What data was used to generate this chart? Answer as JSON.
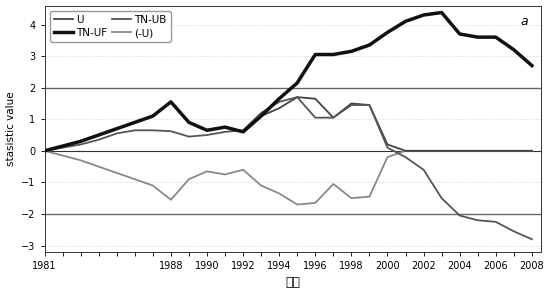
{
  "title": "a",
  "xlabel": "年份",
  "ylabel": "stasistic value",
  "ylim": [
    -3.2,
    4.6
  ],
  "yticks": [
    -3.0,
    -2.0,
    -1.0,
    0.0,
    1.0,
    2.0,
    3.0,
    4.0
  ],
  "hlines": [
    2.0,
    -2.0
  ],
  "hline_color": "#666666",
  "U_x": [
    1981,
    1982,
    1983,
    1984,
    1985,
    1986,
    1987,
    1988,
    1989,
    1990,
    1991,
    1992,
    1993,
    1994,
    1995,
    1996,
    1997,
    1998,
    1999,
    2000,
    2001,
    2002,
    2003,
    2004,
    2005,
    2006,
    2007,
    2008
  ],
  "U_y": [
    0.0,
    0.15,
    0.3,
    0.5,
    0.7,
    0.9,
    1.1,
    1.55,
    0.9,
    0.65,
    0.75,
    0.6,
    1.1,
    1.35,
    1.7,
    1.65,
    1.05,
    1.5,
    1.45,
    0.2,
    0.0,
    0.0,
    0.0,
    0.0,
    0.0,
    0.0,
    0.0,
    0.0
  ],
  "U_color": "#444444",
  "U_lw": 1.3,
  "TNUF_x": [
    1981,
    1982,
    1983,
    1984,
    1985,
    1986,
    1987,
    1988,
    1989,
    1990,
    1991,
    1992,
    1993,
    1994,
    1995,
    1996,
    1997,
    1998,
    1999,
    2000,
    2001,
    2002,
    2003,
    2004,
    2005,
    2006,
    2007,
    2008
  ],
  "TNUF_y": [
    0.0,
    0.15,
    0.3,
    0.5,
    0.7,
    0.9,
    1.1,
    1.55,
    0.9,
    0.65,
    0.75,
    0.6,
    1.1,
    1.65,
    2.15,
    3.05,
    3.05,
    3.15,
    3.35,
    3.75,
    4.1,
    4.3,
    4.38,
    3.7,
    3.6,
    3.6,
    3.2,
    2.7
  ],
  "TNUF_color": "#111111",
  "TNUF_lw": 2.5,
  "TNUB_x": [
    1981,
    1982,
    1983,
    1984,
    1985,
    1986,
    1987,
    1988,
    1989,
    1990,
    1991,
    1992,
    1993,
    1994,
    1995,
    1996,
    1997,
    1998,
    1999,
    2000,
    2001,
    2002,
    2003,
    2004,
    2005,
    2006,
    2007,
    2008
  ],
  "TNUB_y": [
    0.0,
    0.1,
    0.2,
    0.35,
    0.55,
    0.65,
    0.65,
    0.62,
    0.45,
    0.5,
    0.6,
    0.65,
    1.2,
    1.55,
    1.7,
    1.05,
    1.05,
    1.45,
    1.45,
    0.1,
    -0.2,
    -0.6,
    -1.5,
    -2.05,
    -2.2,
    -2.25,
    -2.55,
    -2.8
  ],
  "TNUB_color": "#555555",
  "TNUB_lw": 1.3,
  "negU_x": [
    1981,
    1982,
    1983,
    1984,
    1985,
    1986,
    1987,
    1988,
    1989,
    1990,
    1991,
    1992,
    1993,
    1994,
    1995,
    1996,
    1997,
    1998,
    1999,
    2000,
    2001,
    2002,
    2003,
    2004,
    2005,
    2006,
    2007,
    2008
  ],
  "negU_y": [
    0.0,
    -0.15,
    -0.3,
    -0.5,
    -0.7,
    -0.9,
    -1.1,
    -1.55,
    -0.9,
    -0.65,
    -0.75,
    -0.6,
    -1.1,
    -1.35,
    -1.7,
    -1.65,
    -1.05,
    -1.5,
    -1.45,
    -0.2,
    0.0,
    0.0,
    0.0,
    0.0,
    0.0,
    0.0,
    0.0,
    0.0
  ],
  "negU_color": "#888888",
  "negU_lw": 1.3,
  "shown_xticks": [
    1981,
    1988,
    1990,
    1992,
    1994,
    1996,
    1998,
    2000,
    2002,
    2004,
    2006,
    2008
  ],
  "xlim": [
    1981,
    2008.5
  ],
  "bg_color": "#ffffff",
  "grid_dotted_color": "#cccccc"
}
